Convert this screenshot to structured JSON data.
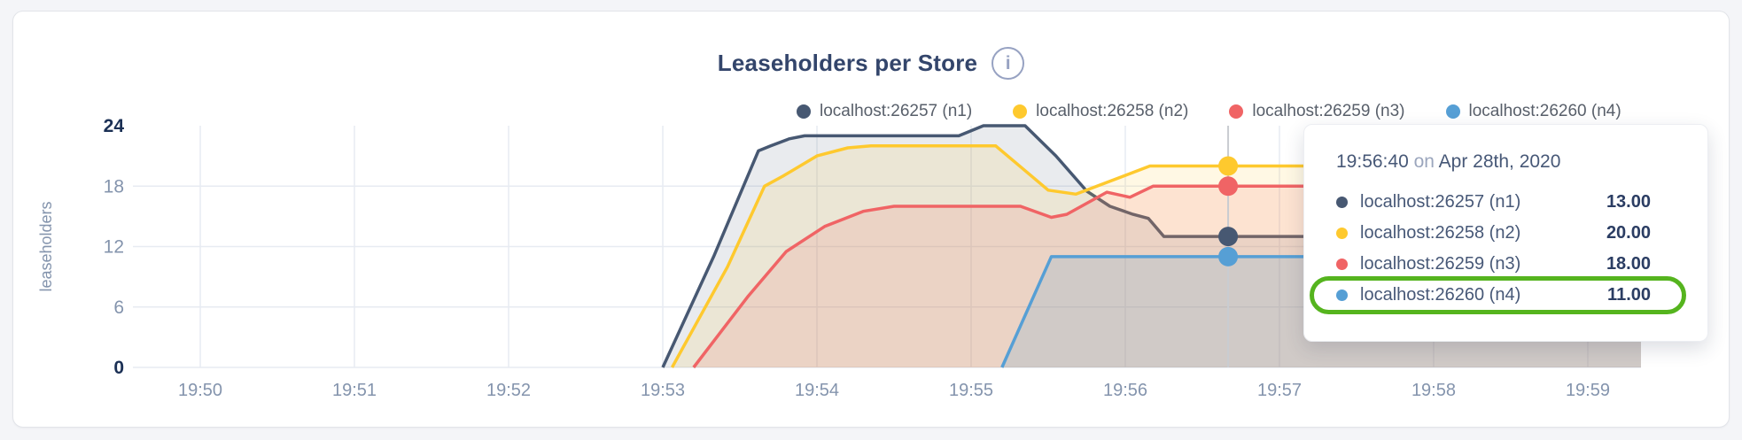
{
  "page": {
    "background": "#f4f5f8",
    "card_background": "#ffffff"
  },
  "header": {
    "title": "Leaseholders per Store",
    "info_icon_glyph": "i"
  },
  "legend": {
    "items": [
      {
        "label": "localhost:26257 (n1)",
        "color": "#475872"
      },
      {
        "label": "localhost:26258 (n2)",
        "color": "#fec92e"
      },
      {
        "label": "localhost:26259 (n3)",
        "color": "#f06465"
      },
      {
        "label": "localhost:26260 (n4)",
        "color": "#569fd5"
      }
    ]
  },
  "chart_data": {
    "type": "area",
    "title": "Leaseholders per Store",
    "xlabel": "",
    "ylabel": "leaseholders",
    "ylim": [
      0,
      24
    ],
    "x_domain": [
      -0.437,
      9.345
    ],
    "grid_color": "#e7ebf2",
    "axis_text_color": "#8494ad",
    "axis_text_emphasis_color": "#1b3055",
    "x_ticks": [
      {
        "t": 0,
        "label": "19:50"
      },
      {
        "t": 1,
        "label": "19:51"
      },
      {
        "t": 2,
        "label": "19:52"
      },
      {
        "t": 3,
        "label": "19:53"
      },
      {
        "t": 4,
        "label": "19:54"
      },
      {
        "t": 5,
        "label": "19:55"
      },
      {
        "t": 6,
        "label": "19:56"
      },
      {
        "t": 7,
        "label": "19:57"
      },
      {
        "t": 8,
        "label": "19:58"
      },
      {
        "t": 9,
        "label": "19:59"
      }
    ],
    "y_ticks": [
      {
        "value": 0,
        "label": "0",
        "emphasis": true,
        "grid": true
      },
      {
        "value": 6,
        "label": "6",
        "emphasis": false,
        "grid": true
      },
      {
        "value": 12,
        "label": "12",
        "emphasis": false,
        "grid": true
      },
      {
        "value": 18,
        "label": "18",
        "emphasis": false,
        "grid": true
      },
      {
        "value": 24,
        "label": "24",
        "emphasis": true,
        "grid": false
      }
    ],
    "series": [
      {
        "name": "localhost:26257 (n1)",
        "color": "#475872",
        "fill_opacity": 0.12,
        "points": [
          [
            3.0,
            0
          ],
          [
            3.33,
            11
          ],
          [
            3.62,
            21.5
          ],
          [
            3.7,
            22
          ],
          [
            3.82,
            22.7
          ],
          [
            3.92,
            23
          ],
          [
            4.92,
            23
          ],
          [
            5.08,
            24
          ],
          [
            5.35,
            24
          ],
          [
            5.55,
            21
          ],
          [
            5.75,
            17.5
          ],
          [
            5.9,
            16
          ],
          [
            6.05,
            15.2
          ],
          [
            6.15,
            14.8
          ],
          [
            6.25,
            13
          ],
          [
            9.345,
            13
          ]
        ]
      },
      {
        "name": "localhost:26258 (n2)",
        "color": "#fec92e",
        "fill_opacity": 0.13,
        "points": [
          [
            3.06,
            0
          ],
          [
            3.42,
            10
          ],
          [
            3.66,
            18
          ],
          [
            3.78,
            19
          ],
          [
            4.0,
            21
          ],
          [
            4.2,
            21.8
          ],
          [
            4.35,
            22
          ],
          [
            5.16,
            22
          ],
          [
            5.5,
            17.6
          ],
          [
            5.68,
            17.2
          ],
          [
            6.16,
            20
          ],
          [
            9.345,
            20
          ]
        ]
      },
      {
        "name": "localhost:26259 (n3)",
        "color": "#f06465",
        "fill_opacity": 0.14,
        "points": [
          [
            3.2,
            0
          ],
          [
            3.55,
            7
          ],
          [
            3.8,
            11.5
          ],
          [
            4.05,
            14
          ],
          [
            4.3,
            15.5
          ],
          [
            4.5,
            16
          ],
          [
            5.32,
            16
          ],
          [
            5.52,
            14.9
          ],
          [
            5.62,
            15.2
          ],
          [
            5.88,
            17.4
          ],
          [
            6.03,
            16.9
          ],
          [
            6.18,
            18
          ],
          [
            9.345,
            18
          ]
        ]
      },
      {
        "name": "localhost:26260 (n4)",
        "color": "#569fd5",
        "fill_opacity": 0.18,
        "points": [
          [
            5.2,
            0
          ],
          [
            5.52,
            11
          ],
          [
            9.345,
            11
          ]
        ]
      }
    ],
    "hover": {
      "x": 6.667,
      "crosshair_color": "#c9ccd1",
      "dot_radius": 11,
      "values": [
        13,
        20,
        18,
        11
      ]
    }
  },
  "tooltip": {
    "time": "19:56:40",
    "conjunction": "on",
    "date": "Apr 28th, 2020",
    "highlight_color": "#55b41e",
    "rows": [
      {
        "label": "localhost:26257 (n1)",
        "value": "13.00",
        "color": "#475872",
        "highlighted": false
      },
      {
        "label": "localhost:26258 (n2)",
        "value": "20.00",
        "color": "#fec92e",
        "highlighted": false
      },
      {
        "label": "localhost:26259 (n3)",
        "value": "18.00",
        "color": "#f06465",
        "highlighted": false
      },
      {
        "label": "localhost:26260 (n4)",
        "value": "11.00",
        "color": "#569fd5",
        "highlighted": true
      }
    ]
  }
}
